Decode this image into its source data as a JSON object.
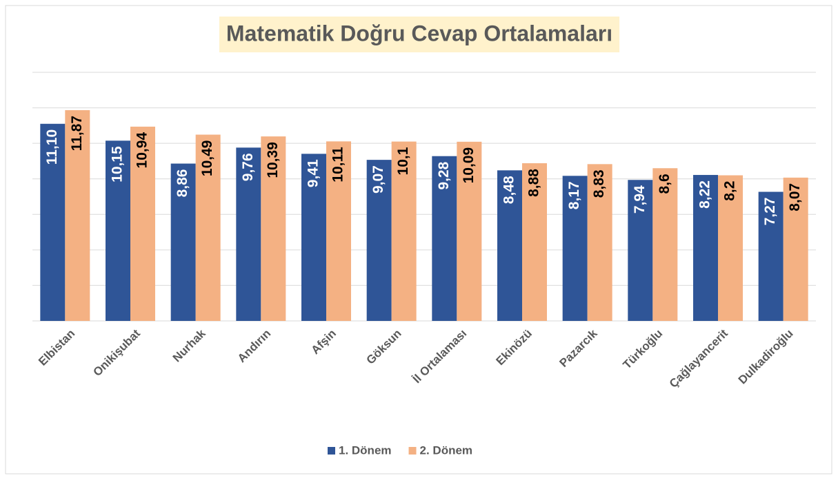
{
  "chart_data": {
    "type": "bar",
    "title": "Matematik Doğru Cevap Ortalamaları",
    "categories": [
      "Elbistan",
      "Onikişubat",
      "Nurhak",
      "Andırın",
      "Afşin",
      "Göksun",
      "İl Ortalaması",
      "Ekinözü",
      "Pazarcık",
      "Türkoğlu",
      "Çağlayancerit",
      "Dulkadiroğlu"
    ],
    "series": [
      {
        "name": "1. Dönem",
        "color": "#2f5597",
        "values": [
          11.1,
          10.15,
          8.86,
          9.76,
          9.41,
          9.07,
          9.28,
          8.48,
          8.17,
          7.94,
          8.22,
          7.27
        ],
        "value_labels": [
          "11,10",
          "10,15",
          "8,86",
          "9,76",
          "9,41",
          "9,07",
          "9,28",
          "8,48",
          "8,17",
          "7,94",
          "8,22",
          "7,27"
        ]
      },
      {
        "name": "2. Dönem",
        "color": "#f4b183",
        "values": [
          11.87,
          10.94,
          10.49,
          10.39,
          10.11,
          10.1,
          10.09,
          8.88,
          8.83,
          8.6,
          8.2,
          8.07
        ],
        "value_labels": [
          "11,87",
          "10,94",
          "10,49",
          "10,39",
          "10,11",
          "10,1",
          "10,09",
          "8,88",
          "8,83",
          "8,6",
          "8,2",
          "8,07"
        ]
      }
    ],
    "ylim": [
      0,
      14
    ],
    "yticks": [
      0,
      2,
      4,
      6,
      8,
      10,
      12,
      14
    ],
    "grid": true,
    "legend": "bottom"
  }
}
